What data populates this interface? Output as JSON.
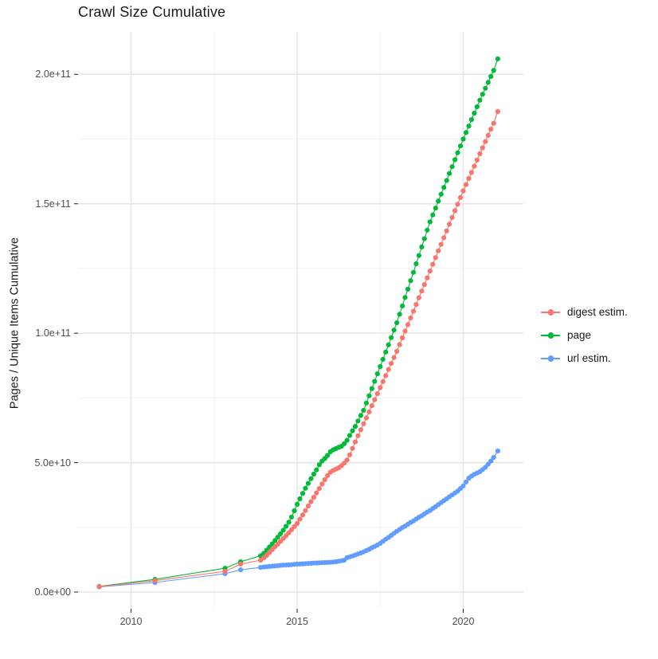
{
  "title": "Crawl Size Cumulative",
  "y_axis": {
    "label": "Pages / Unique Items Cumulative",
    "tick_labels": [
      "0.0e+00",
      "5.0e+10",
      "1.0e+11",
      "1.5e+11",
      "2.0e+11"
    ]
  },
  "x_axis": {
    "tick_labels": [
      "2010",
      "2015",
      "2020"
    ]
  },
  "legend": {
    "items": [
      {
        "label": "digest estim.",
        "color": "#F8766D"
      },
      {
        "label": "page",
        "color": "#00BA38"
      },
      {
        "label": "url estim.",
        "color": "#619CFF"
      }
    ]
  },
  "chart_data": {
    "type": "line",
    "markers": true,
    "title": "Crawl Size Cumulative",
    "xlabel": "",
    "ylabel": "Pages / Unique Items Cumulative",
    "unit": "value is pages x 1e9 (50 = 5.0e+10)",
    "xlim": [
      2008.4,
      2021.8
    ],
    "ylim": [
      -6,
      216
    ],
    "grid": "major+minor",
    "legend_position": "right",
    "x_ticks": {
      "values": [
        2010,
        2015,
        2020
      ],
      "labels": [
        "2010",
        "2015",
        "2020"
      ]
    },
    "y_ticks": {
      "values": [
        0,
        50,
        100,
        150,
        200
      ],
      "labels": [
        "0.0e+00",
        "5.0e+10",
        "1.0e+11",
        "1.5e+11",
        "2.0e+11"
      ]
    },
    "x_minor_ticks": [
      2012.5,
      2017.5
    ],
    "y_minor_ticks": [
      25,
      75,
      125,
      175
    ],
    "series": [
      {
        "name": "url estim.",
        "color": "#619CFF",
        "points": [
          [
            2009.04,
            2
          ],
          [
            2010.72,
            3.7
          ],
          [
            2012.83,
            7.1
          ],
          [
            2013.3,
            8.6
          ],
          [
            2013.9,
            9.5
          ],
          [
            2014,
            9.7
          ],
          [
            2014.083,
            9.8
          ],
          [
            2014.167,
            9.9
          ],
          [
            2014.25,
            10
          ],
          [
            2014.333,
            10.1
          ],
          [
            2014.417,
            10.2
          ],
          [
            2014.5,
            10.3
          ],
          [
            2014.583,
            10.4
          ],
          [
            2014.667,
            10.45
          ],
          [
            2014.75,
            10.5
          ],
          [
            2014.833,
            10.6
          ],
          [
            2014.917,
            10.7
          ],
          [
            2015,
            10.8
          ],
          [
            2015.083,
            10.85
          ],
          [
            2015.167,
            10.9
          ],
          [
            2015.25,
            11
          ],
          [
            2015.333,
            11.05
          ],
          [
            2015.417,
            11.1
          ],
          [
            2015.5,
            11.2
          ],
          [
            2015.583,
            11.25
          ],
          [
            2015.667,
            11.3
          ],
          [
            2015.75,
            11.35
          ],
          [
            2015.833,
            11.4
          ],
          [
            2015.917,
            11.45
          ],
          [
            2016,
            11.5
          ],
          [
            2016.083,
            11.6
          ],
          [
            2016.167,
            11.7
          ],
          [
            2016.25,
            11.9
          ],
          [
            2016.333,
            12.1
          ],
          [
            2016.417,
            12.3
          ],
          [
            2016.5,
            13.3
          ],
          [
            2016.583,
            13.6
          ],
          [
            2016.667,
            13.9
          ],
          [
            2016.75,
            14.3
          ],
          [
            2016.833,
            14.7
          ],
          [
            2016.917,
            15.1
          ],
          [
            2017,
            15.5
          ],
          [
            2017.083,
            16
          ],
          [
            2017.167,
            16.5
          ],
          [
            2017.25,
            17.1
          ],
          [
            2017.333,
            17.6
          ],
          [
            2017.417,
            18.2
          ],
          [
            2017.5,
            18.8
          ],
          [
            2017.583,
            19.6
          ],
          [
            2017.667,
            20.4
          ],
          [
            2017.75,
            21.1
          ],
          [
            2017.833,
            21.9
          ],
          [
            2017.917,
            22.7
          ],
          [
            2018,
            23.5
          ],
          [
            2018.083,
            24.2
          ],
          [
            2018.167,
            24.9
          ],
          [
            2018.25,
            25.5
          ],
          [
            2018.333,
            26.2
          ],
          [
            2018.417,
            26.9
          ],
          [
            2018.5,
            27.5
          ],
          [
            2018.583,
            28.2
          ],
          [
            2018.667,
            28.9
          ],
          [
            2018.75,
            29.5
          ],
          [
            2018.833,
            30.2
          ],
          [
            2018.917,
            30.9
          ],
          [
            2019,
            31.5
          ],
          [
            2019.083,
            32.3
          ],
          [
            2019.167,
            33
          ],
          [
            2019.25,
            33.8
          ],
          [
            2019.333,
            34.5
          ],
          [
            2019.417,
            35.3
          ],
          [
            2019.5,
            36
          ],
          [
            2019.583,
            36.8
          ],
          [
            2019.667,
            37.5
          ],
          [
            2019.75,
            38.3
          ],
          [
            2019.833,
            39
          ],
          [
            2019.917,
            40
          ],
          [
            2020,
            41
          ],
          [
            2020.083,
            42.5
          ],
          [
            2020.167,
            44
          ],
          [
            2020.25,
            44.8
          ],
          [
            2020.333,
            45.5
          ],
          [
            2020.417,
            46
          ],
          [
            2020.5,
            46.5
          ],
          [
            2020.583,
            47.3
          ],
          [
            2020.667,
            48.2
          ],
          [
            2020.75,
            49.4
          ],
          [
            2020.833,
            50.6
          ],
          [
            2020.917,
            52
          ],
          [
            2021.04,
            54.5
          ]
        ]
      },
      {
        "name": "page",
        "color": "#00BA38",
        "points": [
          [
            2009.04,
            2.2
          ],
          [
            2010.72,
            4.9
          ],
          [
            2012.83,
            9.2
          ],
          [
            2013.3,
            11.7
          ],
          [
            2013.9,
            14
          ],
          [
            2014,
            15
          ],
          [
            2014.083,
            16.2
          ],
          [
            2014.167,
            17.4
          ],
          [
            2014.25,
            18.6
          ],
          [
            2014.333,
            19.9
          ],
          [
            2014.417,
            21.2
          ],
          [
            2014.5,
            22.5
          ],
          [
            2014.583,
            23.9
          ],
          [
            2014.667,
            25.4
          ],
          [
            2014.75,
            27
          ],
          [
            2014.833,
            29
          ],
          [
            2014.917,
            31.4
          ],
          [
            2015,
            33.9
          ],
          [
            2015.083,
            36
          ],
          [
            2015.167,
            38.1
          ],
          [
            2015.25,
            40.1
          ],
          [
            2015.333,
            42
          ],
          [
            2015.417,
            43.8
          ],
          [
            2015.5,
            45.6
          ],
          [
            2015.583,
            47.2
          ],
          [
            2015.667,
            49.2
          ],
          [
            2015.75,
            50.6
          ],
          [
            2015.833,
            51.6
          ],
          [
            2015.917,
            52.8
          ],
          [
            2016,
            54.2
          ],
          [
            2016.083,
            54.9
          ],
          [
            2016.167,
            55.4
          ],
          [
            2016.25,
            55.9
          ],
          [
            2016.333,
            56.3
          ],
          [
            2016.417,
            57.3
          ],
          [
            2016.5,
            58.6
          ],
          [
            2016.583,
            60.5
          ],
          [
            2016.667,
            62.3
          ],
          [
            2016.75,
            64
          ],
          [
            2016.833,
            66.1
          ],
          [
            2016.917,
            68.2
          ],
          [
            2017,
            70.2
          ],
          [
            2017.083,
            73
          ],
          [
            2017.167,
            75.8
          ],
          [
            2017.25,
            78.6
          ],
          [
            2017.333,
            81.4
          ],
          [
            2017.417,
            84.3
          ],
          [
            2017.5,
            87.1
          ],
          [
            2017.583,
            89.9
          ],
          [
            2017.667,
            92.7
          ],
          [
            2017.75,
            95.5
          ],
          [
            2017.833,
            98.3
          ],
          [
            2017.917,
            101.2
          ],
          [
            2018,
            104
          ],
          [
            2018.083,
            107.3
          ],
          [
            2018.167,
            110.5
          ],
          [
            2018.25,
            113.8
          ],
          [
            2018.333,
            117
          ],
          [
            2018.417,
            120.3
          ],
          [
            2018.5,
            123.5
          ],
          [
            2018.583,
            126.8
          ],
          [
            2018.667,
            130
          ],
          [
            2018.75,
            133.3
          ],
          [
            2018.833,
            136.5
          ],
          [
            2018.917,
            139.8
          ],
          [
            2019,
            143
          ],
          [
            2019.083,
            145.7
          ],
          [
            2019.167,
            148.3
          ],
          [
            2019.25,
            151
          ],
          [
            2019.333,
            153.7
          ],
          [
            2019.417,
            156.3
          ],
          [
            2019.5,
            159
          ],
          [
            2019.583,
            161.7
          ],
          [
            2019.667,
            164.3
          ],
          [
            2019.75,
            167
          ],
          [
            2019.833,
            169.7
          ],
          [
            2019.917,
            172.3
          ],
          [
            2020,
            175
          ],
          [
            2020.083,
            177.5
          ],
          [
            2020.167,
            180
          ],
          [
            2020.25,
            182.5
          ],
          [
            2020.333,
            185
          ],
          [
            2020.417,
            187.5
          ],
          [
            2020.5,
            190
          ],
          [
            2020.583,
            192.3
          ],
          [
            2020.667,
            194.6
          ],
          [
            2020.75,
            196.9
          ],
          [
            2020.833,
            199.2
          ],
          [
            2020.917,
            201.5
          ],
          [
            2021.04,
            206
          ]
        ]
      },
      {
        "name": "digest estim.",
        "color": "#F8766D",
        "points": [
          [
            2009.04,
            2.1
          ],
          [
            2010.72,
            4.4
          ],
          [
            2012.83,
            8
          ],
          [
            2013.3,
            10.8
          ],
          [
            2013.9,
            12.3
          ],
          [
            2014,
            13.2
          ],
          [
            2014.083,
            14.2
          ],
          [
            2014.167,
            15.3
          ],
          [
            2014.25,
            16.4
          ],
          [
            2014.333,
            17.5
          ],
          [
            2014.417,
            18.5
          ],
          [
            2014.5,
            19.6
          ],
          [
            2014.583,
            20.7
          ],
          [
            2014.667,
            21.8
          ],
          [
            2014.75,
            22.9
          ],
          [
            2014.833,
            24.1
          ],
          [
            2014.917,
            25.3
          ],
          [
            2015,
            26.5
          ],
          [
            2015.083,
            28.1
          ],
          [
            2015.167,
            29.8
          ],
          [
            2015.25,
            31.5
          ],
          [
            2015.333,
            33.2
          ],
          [
            2015.417,
            34.9
          ],
          [
            2015.5,
            36.6
          ],
          [
            2015.583,
            38.3
          ],
          [
            2015.667,
            40
          ],
          [
            2015.75,
            41.7
          ],
          [
            2015.833,
            43.4
          ],
          [
            2015.917,
            45
          ],
          [
            2016,
            46.3
          ],
          [
            2016.083,
            47
          ],
          [
            2016.167,
            47.5
          ],
          [
            2016.25,
            48
          ],
          [
            2016.333,
            48.8
          ],
          [
            2016.417,
            49.8
          ],
          [
            2016.5,
            51
          ],
          [
            2016.583,
            53
          ],
          [
            2016.667,
            55.5
          ],
          [
            2016.75,
            58
          ],
          [
            2016.833,
            60.4
          ],
          [
            2016.917,
            62.7
          ],
          [
            2017,
            65
          ],
          [
            2017.083,
            67.3
          ],
          [
            2017.167,
            69.6
          ],
          [
            2017.25,
            72
          ],
          [
            2017.333,
            74.3
          ],
          [
            2017.417,
            76.6
          ],
          [
            2017.5,
            79
          ],
          [
            2017.583,
            81.3
          ],
          [
            2017.667,
            83.6
          ],
          [
            2017.75,
            86
          ],
          [
            2017.833,
            88.3
          ],
          [
            2017.917,
            90.6
          ],
          [
            2018,
            93
          ],
          [
            2018.083,
            95.6
          ],
          [
            2018.167,
            98.2
          ],
          [
            2018.25,
            100.8
          ],
          [
            2018.333,
            103.3
          ],
          [
            2018.417,
            105.9
          ],
          [
            2018.5,
            108.5
          ],
          [
            2018.583,
            111.1
          ],
          [
            2018.667,
            113.7
          ],
          [
            2018.75,
            116.3
          ],
          [
            2018.833,
            118.8
          ],
          [
            2018.917,
            121.4
          ],
          [
            2019,
            124
          ],
          [
            2019.083,
            126.6
          ],
          [
            2019.167,
            129.2
          ],
          [
            2019.25,
            131.8
          ],
          [
            2019.333,
            134.3
          ],
          [
            2019.417,
            136.9
          ],
          [
            2019.5,
            139.5
          ],
          [
            2019.583,
            142.1
          ],
          [
            2019.667,
            144.7
          ],
          [
            2019.75,
            147.3
          ],
          [
            2019.833,
            149.8
          ],
          [
            2019.917,
            152.4
          ],
          [
            2020,
            155
          ],
          [
            2020.083,
            157.4
          ],
          [
            2020.167,
            159.8
          ],
          [
            2020.25,
            162.1
          ],
          [
            2020.333,
            164.5
          ],
          [
            2020.417,
            166.9
          ],
          [
            2020.5,
            169.3
          ],
          [
            2020.583,
            171.6
          ],
          [
            2020.667,
            174
          ],
          [
            2020.75,
            176.4
          ],
          [
            2020.833,
            178.8
          ],
          [
            2020.917,
            181.1
          ],
          [
            2021.04,
            185.6
          ]
        ]
      }
    ]
  }
}
